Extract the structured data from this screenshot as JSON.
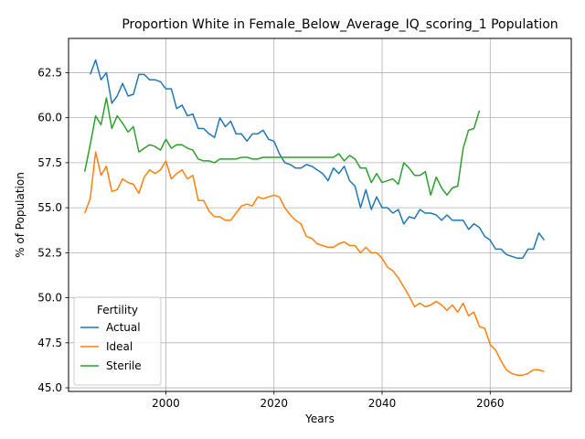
{
  "chart_data": {
    "type": "line",
    "title": "Proportion White in Female_Below_Average_IQ_scoring_1 Population",
    "xlabel": "Years",
    "ylabel": "% of Population",
    "xlim": [
      1982,
      2075
    ],
    "ylim": [
      44.8,
      64.4
    ],
    "xticks": [
      2000,
      2020,
      2040,
      2060
    ],
    "yticks": [
      45.0,
      47.5,
      50.0,
      52.5,
      55.0,
      57.5,
      60.0,
      62.5
    ],
    "ytick_labels": [
      "45.0",
      "47.5",
      "50.0",
      "52.5",
      "55.0",
      "57.5",
      "60.0",
      "62.5"
    ],
    "grid": true,
    "legend": {
      "title": "Fertility",
      "placement": "lower-left"
    },
    "series": [
      {
        "name": "Actual",
        "color": "#1f77b4",
        "x": [
          1986,
          1987,
          1988,
          1989,
          1990,
          1991,
          1992,
          1993,
          1994,
          1995,
          1996,
          1997,
          1998,
          1999,
          2000,
          2001,
          2002,
          2003,
          2004,
          2005,
          2006,
          2007,
          2008,
          2009,
          2010,
          2011,
          2012,
          2013,
          2014,
          2015,
          2016,
          2017,
          2018,
          2019,
          2020,
          2021,
          2022,
          2023,
          2024,
          2025,
          2026,
          2027,
          2028,
          2029,
          2030,
          2031,
          2032,
          2033,
          2034,
          2035,
          2036,
          2037,
          2038,
          2039,
          2040,
          2041,
          2042,
          2043,
          2044,
          2045,
          2046,
          2047,
          2048,
          2049,
          2050,
          2051,
          2052,
          2053,
          2054,
          2055,
          2056,
          2057,
          2058,
          2059,
          2060,
          2061,
          2062,
          2063,
          2064,
          2065,
          2066,
          2067,
          2068,
          2069,
          2070
        ],
        "values": [
          62.4,
          63.2,
          62.1,
          62.5,
          60.8,
          61.2,
          61.9,
          61.2,
          61.3,
          62.4,
          62.4,
          62.1,
          62.1,
          62.0,
          61.6,
          61.6,
          60.5,
          60.7,
          60.1,
          60.2,
          59.4,
          59.4,
          59.1,
          58.9,
          60.0,
          59.5,
          59.8,
          59.1,
          59.1,
          58.7,
          59.1,
          59.1,
          59.3,
          58.8,
          58.7,
          58.0,
          57.5,
          57.4,
          57.2,
          57.2,
          57.4,
          57.3,
          57.1,
          56.9,
          56.5,
          57.2,
          56.9,
          57.3,
          56.5,
          56.2,
          55.0,
          56.0,
          54.9,
          55.6,
          55.0,
          55.0,
          54.7,
          54.9,
          54.1,
          54.5,
          54.4,
          54.9,
          54.7,
          54.7,
          54.6,
          54.3,
          54.6,
          54.3,
          54.3,
          54.3,
          53.8,
          54.1,
          53.9,
          53.4,
          53.2,
          52.7,
          52.7,
          52.4,
          52.3,
          52.2,
          52.2,
          52.7,
          52.7,
          53.6,
          53.2
        ]
      },
      {
        "name": "Ideal",
        "color": "#ff7f0e",
        "x": [
          1985,
          1986,
          1987,
          1988,
          1989,
          1990,
          1991,
          1992,
          1993,
          1994,
          1995,
          1996,
          1997,
          1998,
          1999,
          2000,
          2001,
          2002,
          2003,
          2004,
          2005,
          2006,
          2007,
          2008,
          2009,
          2010,
          2011,
          2012,
          2013,
          2014,
          2015,
          2016,
          2017,
          2018,
          2019,
          2020,
          2021,
          2022,
          2023,
          2024,
          2025,
          2026,
          2027,
          2028,
          2029,
          2030,
          2031,
          2032,
          2033,
          2034,
          2035,
          2036,
          2037,
          2038,
          2039,
          2040,
          2041,
          2042,
          2043,
          2044,
          2045,
          2046,
          2047,
          2048,
          2049,
          2050,
          2051,
          2052,
          2053,
          2054,
          2055,
          2056,
          2057,
          2058,
          2059,
          2060,
          2061,
          2062,
          2063,
          2064,
          2065,
          2066,
          2067,
          2068,
          2069,
          2070
        ],
        "values": [
          54.7,
          55.5,
          58.1,
          56.8,
          57.3,
          55.9,
          56.0,
          56.6,
          56.4,
          56.3,
          55.8,
          56.7,
          57.1,
          56.9,
          57.1,
          57.6,
          56.6,
          56.9,
          57.1,
          56.6,
          56.8,
          55.4,
          55.4,
          54.8,
          54.5,
          54.5,
          54.3,
          54.3,
          54.7,
          55.1,
          55.2,
          55.1,
          55.6,
          55.5,
          55.6,
          55.7,
          55.6,
          55.0,
          54.6,
          54.3,
          54.1,
          53.4,
          53.3,
          53.0,
          52.9,
          52.8,
          52.8,
          53.0,
          53.1,
          52.9,
          52.9,
          52.5,
          52.8,
          52.5,
          52.5,
          52.2,
          51.7,
          51.5,
          51.1,
          50.6,
          50.1,
          49.5,
          49.7,
          49.5,
          49.6,
          49.8,
          49.6,
          49.3,
          49.6,
          49.2,
          49.7,
          49.0,
          49.2,
          48.4,
          48.3,
          47.4,
          47.1,
          46.5,
          46.0,
          45.8,
          45.7,
          45.7,
          45.8,
          46.0,
          46.0,
          45.9
        ]
      },
      {
        "name": "Sterile",
        "color": "#2ca02c",
        "x": [
          1985,
          1986,
          1987,
          1988,
          1989,
          1990,
          1991,
          1992,
          1993,
          1994,
          1995,
          1996,
          1997,
          1998,
          1999,
          2000,
          2001,
          2002,
          2003,
          2004,
          2005,
          2006,
          2007,
          2008,
          2009,
          2010,
          2011,
          2012,
          2013,
          2014,
          2015,
          2016,
          2017,
          2018,
          2019,
          2020,
          2021,
          2022,
          2023,
          2024,
          2025,
          2026,
          2027,
          2028,
          2029,
          2030,
          2031,
          2032,
          2033,
          2034,
          2035,
          2036,
          2037,
          2038,
          2039,
          2040,
          2041,
          2042,
          2043,
          2044,
          2045,
          2046,
          2047,
          2048,
          2049,
          2050,
          2051,
          2052,
          2053,
          2054,
          2055,
          2056,
          2057,
          2058
        ],
        "values": [
          57.0,
          58.5,
          60.1,
          59.6,
          61.1,
          59.4,
          60.1,
          59.7,
          59.2,
          59.5,
          58.1,
          58.3,
          58.5,
          58.4,
          58.2,
          58.8,
          58.3,
          58.5,
          58.5,
          58.3,
          58.2,
          57.7,
          57.6,
          57.6,
          57.5,
          57.7,
          57.7,
          57.7,
          57.7,
          57.8,
          57.8,
          57.7,
          57.7,
          57.8,
          57.8,
          57.8,
          57.8,
          57.8,
          57.8,
          57.8,
          57.8,
          57.8,
          57.8,
          57.8,
          57.8,
          57.8,
          57.8,
          58.0,
          57.6,
          57.9,
          57.7,
          57.2,
          57.2,
          56.4,
          56.9,
          56.4,
          56.5,
          56.6,
          56.3,
          57.5,
          57.2,
          56.8,
          56.8,
          57.0,
          55.7,
          56.7,
          56.1,
          55.7,
          56.1,
          56.2,
          58.3,
          59.3,
          59.4,
          60.4
        ]
      }
    ]
  }
}
